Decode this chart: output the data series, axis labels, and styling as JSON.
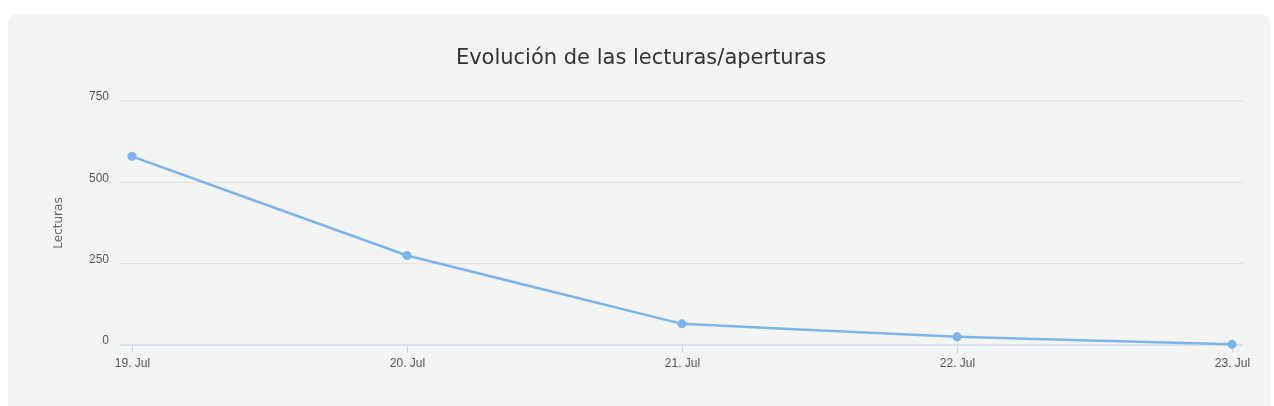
{
  "chart_data": {
    "type": "line",
    "title": "Evolución de las lecturas/aperturas",
    "ylabel": "Lecturas",
    "categories": [
      "19. Jul",
      "20. Jul",
      "21. Jul",
      "22. Jul",
      "23. Jul"
    ],
    "series": [
      {
        "color": "#7cb5ec",
        "values": [
          580,
          275,
          65,
          25,
          2
        ]
      }
    ],
    "ylim": [
      0,
      750
    ],
    "yticks": [
      0,
      250,
      500,
      750
    ],
    "grid": "y",
    "marker": "circle",
    "line_style": "solid"
  }
}
